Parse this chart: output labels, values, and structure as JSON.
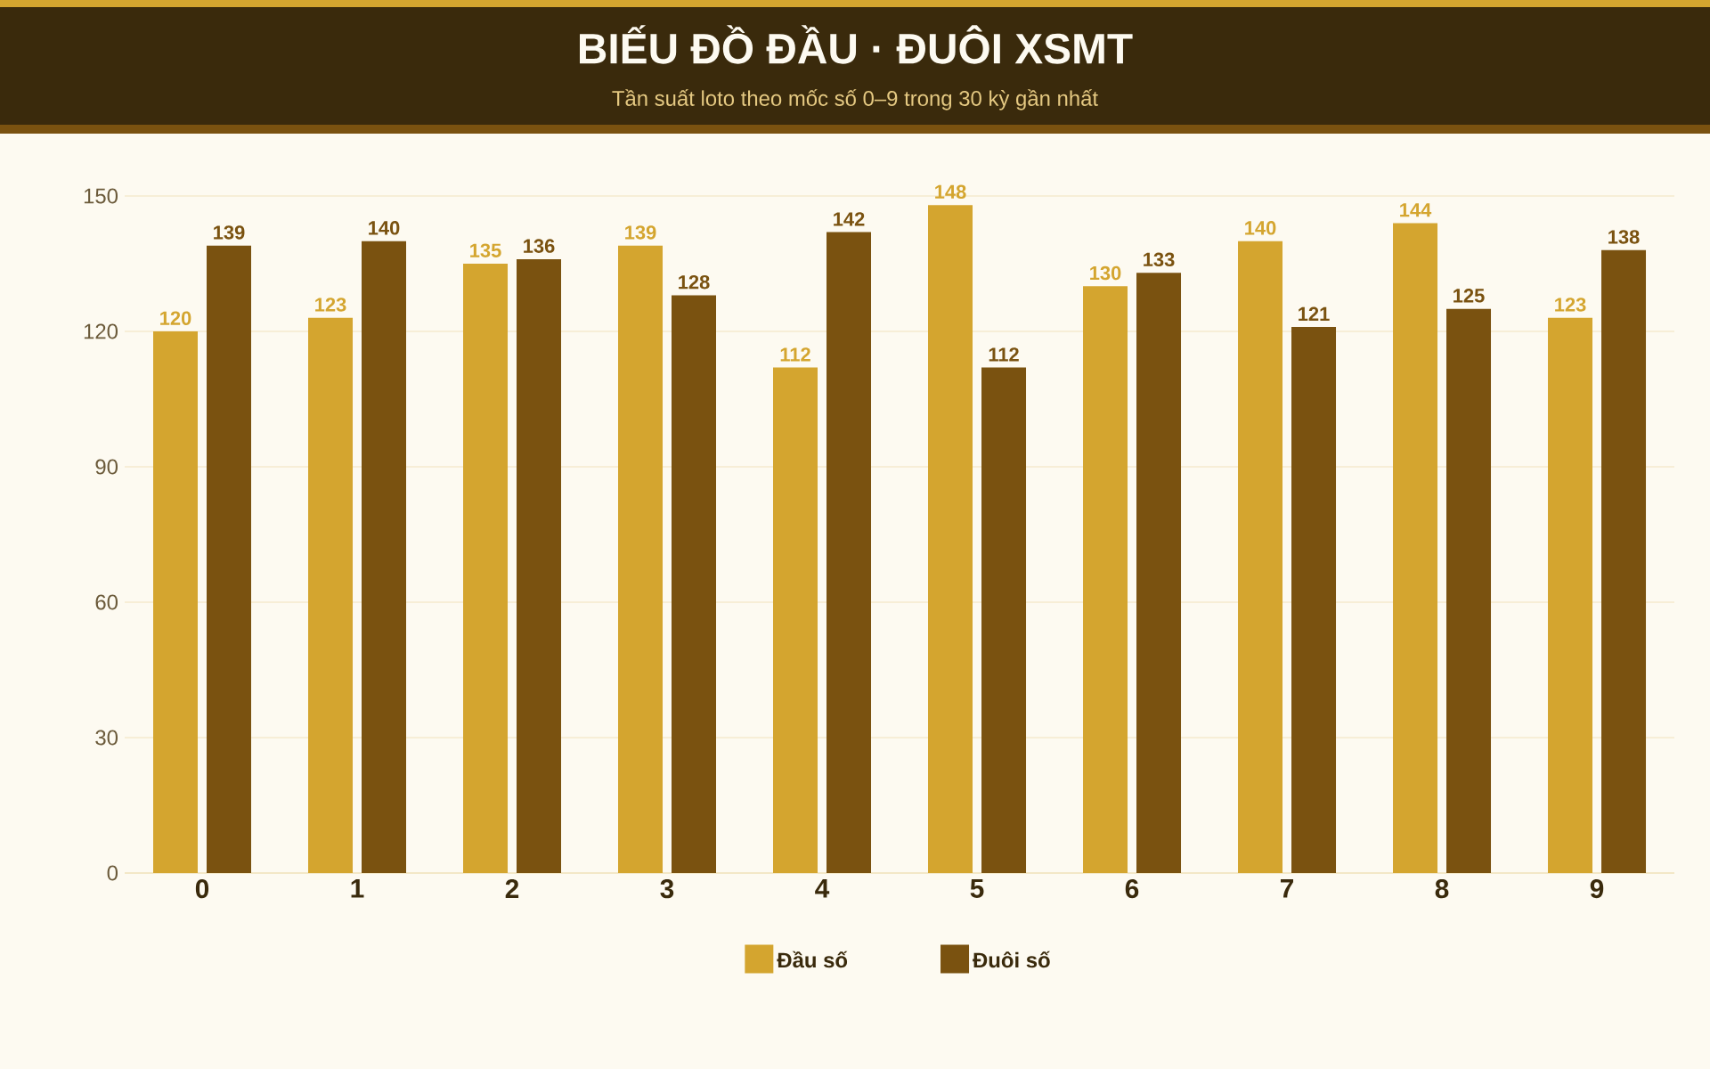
{
  "chart_data": {
    "type": "bar",
    "title": "BIẾU ĐỒ ĐẦU · ĐUÔI XSMT",
    "subtitle": "Tần suất loto theo mốc số 0–9 trong 30 kỳ gần nhất",
    "categories": [
      "0",
      "1",
      "2",
      "3",
      "4",
      "5",
      "6",
      "7",
      "8",
      "9"
    ],
    "series": [
      {
        "name": "Đầu số",
        "color": "#d4a52f",
        "values": [
          120,
          123,
          135,
          139,
          112,
          148,
          130,
          140,
          144,
          123
        ]
      },
      {
        "name": "Đuôi số",
        "color": "#7a5210",
        "values": [
          139,
          140,
          136,
          128,
          142,
          112,
          133,
          121,
          125,
          138
        ]
      }
    ],
    "ylim": [
      0,
      150
    ],
    "yticks": [
      0,
      30,
      60,
      90,
      120,
      150
    ],
    "grid": "y",
    "legend": "bottom",
    "data_labels": true
  }
}
